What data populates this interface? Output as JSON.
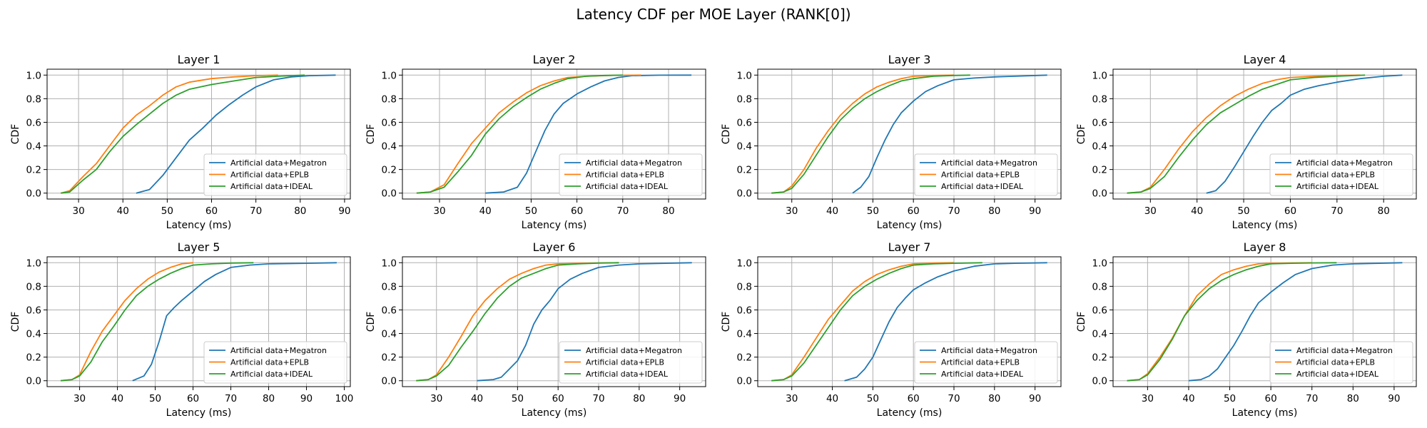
{
  "title": "Latency CDF per MOE Layer (RANK[0])",
  "colors": {
    "megatron": "#1f77b4",
    "eplb": "#ff7f0e",
    "ideal": "#2ca02c",
    "grid": "#b0b0b0"
  },
  "chart_data": [
    {
      "type": "line",
      "title": "Layer 1",
      "xlabel": "Latency (ms)",
      "ylabel": "CDF",
      "xlim": [
        22.9,
        91.3
      ],
      "ylim": [
        -0.05,
        1.05
      ],
      "xticks": [
        30,
        40,
        50,
        60,
        70,
        80,
        90
      ],
      "yticks": [
        0.0,
        0.2,
        0.4,
        0.6,
        0.8,
        1.0
      ],
      "grid": true,
      "legend_position": "lower right",
      "series": [
        {
          "name": "Artificial data+Megatron",
          "x": [
            43,
            46,
            49,
            52,
            55,
            58,
            61,
            64,
            67,
            70,
            74,
            78,
            82,
            88
          ],
          "y": [
            0,
            0.03,
            0.15,
            0.3,
            0.45,
            0.55,
            0.66,
            0.75,
            0.83,
            0.9,
            0.96,
            0.985,
            0.995,
            1.0
          ]
        },
        {
          "name": "Artificial data+EPLB",
          "x": [
            26,
            28,
            31,
            34,
            37,
            40,
            43,
            46,
            49,
            52,
            55,
            60,
            65,
            70,
            75
          ],
          "y": [
            0,
            0.02,
            0.14,
            0.25,
            0.4,
            0.55,
            0.66,
            0.74,
            0.83,
            0.9,
            0.94,
            0.97,
            0.985,
            0.995,
            1.0
          ]
        },
        {
          "name": "Artificial data+IDEAL",
          "x": [
            26,
            28,
            31,
            34,
            37,
            40,
            43,
            46,
            49,
            52,
            55,
            60,
            65,
            70,
            75,
            81
          ],
          "y": [
            0,
            0.01,
            0.11,
            0.2,
            0.35,
            0.48,
            0.58,
            0.67,
            0.76,
            0.83,
            0.88,
            0.92,
            0.95,
            0.98,
            0.99,
            1.0
          ]
        }
      ]
    },
    {
      "type": "line",
      "title": "Layer 2",
      "xlabel": "Latency (ms)",
      "ylabel": "CDF",
      "xlim": [
        21.9,
        88.1
      ],
      "ylim": [
        -0.05,
        1.05
      ],
      "xticks": [
        30,
        40,
        50,
        60,
        70,
        80
      ],
      "yticks": [
        0.0,
        0.2,
        0.4,
        0.6,
        0.8,
        1.0
      ],
      "grid": true,
      "legend_position": "lower right",
      "series": [
        {
          "name": "Artificial data+Megatron",
          "x": [
            40,
            44,
            47,
            49,
            51,
            53,
            55,
            57,
            60,
            63,
            66,
            69,
            72,
            78,
            85
          ],
          "y": [
            0,
            0.01,
            0.05,
            0.17,
            0.35,
            0.53,
            0.67,
            0.76,
            0.84,
            0.9,
            0.95,
            0.98,
            0.995,
            0.999,
            1.0
          ]
        },
        {
          "name": "Artificial data+EPLB",
          "x": [
            25,
            28,
            31,
            34,
            37,
            40,
            43,
            46,
            49,
            52,
            55,
            58,
            62,
            68,
            74
          ],
          "y": [
            0,
            0.01,
            0.07,
            0.25,
            0.42,
            0.55,
            0.68,
            0.77,
            0.85,
            0.91,
            0.95,
            0.98,
            0.99,
            0.998,
            1.0
          ]
        },
        {
          "name": "Artificial data+IDEAL",
          "x": [
            25,
            28,
            31,
            34,
            37,
            40,
            43,
            46,
            49,
            52,
            55,
            58,
            62,
            66,
            70
          ],
          "y": [
            0,
            0.01,
            0.05,
            0.18,
            0.32,
            0.5,
            0.63,
            0.73,
            0.81,
            0.88,
            0.93,
            0.97,
            0.99,
            0.997,
            1.0
          ]
        }
      ]
    },
    {
      "type": "line",
      "title": "Layer 3",
      "xlabel": "Latency (ms)",
      "ylabel": "CDF",
      "xlim": [
        21.6,
        96.4
      ],
      "ylim": [
        -0.05,
        1.05
      ],
      "xticks": [
        30,
        40,
        50,
        60,
        70,
        80,
        90
      ],
      "yticks": [
        0.0,
        0.2,
        0.4,
        0.6,
        0.8,
        1.0
      ],
      "grid": true,
      "legend_position": "lower right",
      "series": [
        {
          "name": "Artificial data+Megatron",
          "x": [
            45,
            47,
            49,
            51,
            53,
            55,
            57,
            60,
            63,
            66,
            70,
            75,
            80,
            85,
            93
          ],
          "y": [
            0,
            0.05,
            0.14,
            0.3,
            0.45,
            0.58,
            0.68,
            0.78,
            0.86,
            0.91,
            0.96,
            0.975,
            0.985,
            0.99,
            1.0
          ]
        },
        {
          "name": "Artificial data+EPLB",
          "x": [
            25,
            28,
            30,
            33,
            36,
            39,
            42,
            45,
            48,
            51,
            54,
            57,
            60,
            65,
            70
          ],
          "y": [
            0,
            0.01,
            0.06,
            0.2,
            0.38,
            0.53,
            0.66,
            0.76,
            0.84,
            0.9,
            0.94,
            0.97,
            0.99,
            0.997,
            1.0
          ]
        },
        {
          "name": "Artificial data+IDEAL",
          "x": [
            25,
            28,
            30,
            33,
            36,
            39,
            42,
            45,
            48,
            51,
            54,
            57,
            60,
            65,
            70,
            74
          ],
          "y": [
            0,
            0.01,
            0.04,
            0.16,
            0.32,
            0.48,
            0.62,
            0.72,
            0.8,
            0.86,
            0.91,
            0.95,
            0.97,
            0.99,
            0.997,
            1.0
          ]
        }
      ]
    },
    {
      "type": "line",
      "title": "Layer 4",
      "xlabel": "Latency (ms)",
      "ylabel": "CDF",
      "xlim": [
        22.0,
        87.0
      ],
      "ylim": [
        -0.05,
        1.05
      ],
      "xticks": [
        30,
        40,
        50,
        60,
        70,
        80
      ],
      "yticks": [
        0.0,
        0.2,
        0.4,
        0.6,
        0.8,
        1.0
      ],
      "grid": true,
      "legend_position": "lower right",
      "series": [
        {
          "name": "Artificial data+Megatron",
          "x": [
            42,
            44,
            46,
            48,
            50,
            52,
            54,
            56,
            58,
            60,
            63,
            66,
            70,
            75,
            80,
            84
          ],
          "y": [
            0,
            0.02,
            0.1,
            0.22,
            0.35,
            0.48,
            0.6,
            0.7,
            0.76,
            0.83,
            0.88,
            0.91,
            0.94,
            0.97,
            0.99,
            1.0
          ]
        },
        {
          "name": "Artificial data+EPLB",
          "x": [
            25,
            28,
            30,
            33,
            36,
            39,
            42,
            45,
            48,
            51,
            54,
            57,
            60,
            65,
            70,
            75
          ],
          "y": [
            0,
            0.01,
            0.05,
            0.2,
            0.37,
            0.52,
            0.64,
            0.74,
            0.82,
            0.88,
            0.93,
            0.96,
            0.98,
            0.99,
            0.997,
            1.0
          ]
        },
        {
          "name": "Artificial data+IDEAL",
          "x": [
            25,
            28,
            30,
            33,
            36,
            39,
            42,
            45,
            48,
            51,
            54,
            57,
            60,
            65,
            70,
            76
          ],
          "y": [
            0,
            0.01,
            0.04,
            0.14,
            0.3,
            0.45,
            0.58,
            0.68,
            0.75,
            0.82,
            0.88,
            0.92,
            0.96,
            0.98,
            0.99,
            1.0
          ]
        }
      ]
    },
    {
      "type": "line",
      "title": "Layer 5",
      "xlabel": "Latency (ms)",
      "ylabel": "CDF",
      "xlim": [
        21.4,
        101.6
      ],
      "ylim": [
        -0.05,
        1.05
      ],
      "xticks": [
        30,
        40,
        50,
        60,
        70,
        80,
        90,
        100
      ],
      "yticks": [
        0.0,
        0.2,
        0.4,
        0.6,
        0.8,
        1.0
      ],
      "grid": true,
      "legend_position": "lower right",
      "series": [
        {
          "name": "Artificial data+Megatron",
          "x": [
            44,
            47,
            49,
            51,
            53,
            55,
            57,
            60,
            63,
            66,
            70,
            75,
            80,
            90,
            98
          ],
          "y": [
            0,
            0.04,
            0.14,
            0.33,
            0.55,
            0.62,
            0.68,
            0.76,
            0.84,
            0.9,
            0.96,
            0.98,
            0.99,
            0.995,
            1.0
          ]
        },
        {
          "name": "Artificial data+EPLB",
          "x": [
            25,
            28,
            30,
            33,
            36,
            39,
            42,
            45,
            48,
            51,
            54,
            57,
            60
          ],
          "y": [
            0,
            0.01,
            0.05,
            0.25,
            0.42,
            0.55,
            0.68,
            0.78,
            0.86,
            0.92,
            0.96,
            0.99,
            1.0
          ]
        },
        {
          "name": "Artificial data+IDEAL",
          "x": [
            25,
            28,
            30,
            33,
            36,
            39,
            42,
            45,
            48,
            51,
            54,
            57,
            60,
            65,
            70,
            76
          ],
          "y": [
            0,
            0.01,
            0.04,
            0.16,
            0.33,
            0.46,
            0.6,
            0.72,
            0.8,
            0.86,
            0.91,
            0.95,
            0.98,
            0.99,
            0.997,
            1.0
          ]
        }
      ]
    },
    {
      "type": "line",
      "title": "Layer 6",
      "xlabel": "Latency (ms)",
      "ylabel": "CDF",
      "xlim": [
        21.6,
        96.4
      ],
      "ylim": [
        -0.05,
        1.05
      ],
      "xticks": [
        30,
        40,
        50,
        60,
        70,
        80,
        90
      ],
      "yticks": [
        0.0,
        0.2,
        0.4,
        0.6,
        0.8,
        1.0
      ],
      "grid": true,
      "legend_position": "lower right",
      "series": [
        {
          "name": "Artificial data+Megatron",
          "x": [
            40,
            44,
            46,
            48,
            50,
            52,
            54,
            56,
            58,
            60,
            63,
            66,
            70,
            75,
            80,
            93
          ],
          "y": [
            0,
            0.01,
            0.03,
            0.1,
            0.17,
            0.3,
            0.48,
            0.6,
            0.68,
            0.78,
            0.86,
            0.91,
            0.96,
            0.98,
            0.99,
            1.0
          ]
        },
        {
          "name": "Artificial data+EPLB",
          "x": [
            25,
            28,
            30,
            33,
            36,
            39,
            42,
            45,
            48,
            51,
            54,
            57,
            60,
            65,
            70,
            75
          ],
          "y": [
            0,
            0.01,
            0.05,
            0.2,
            0.37,
            0.55,
            0.68,
            0.78,
            0.86,
            0.91,
            0.95,
            0.98,
            0.99,
            0.995,
            0.998,
            1.0
          ]
        },
        {
          "name": "Artificial data+IDEAL",
          "x": [
            25,
            28,
            30,
            33,
            36,
            39,
            42,
            45,
            48,
            51,
            54,
            57,
            60,
            65,
            70,
            75
          ],
          "y": [
            0,
            0.01,
            0.04,
            0.13,
            0.28,
            0.42,
            0.57,
            0.7,
            0.8,
            0.87,
            0.91,
            0.95,
            0.98,
            0.99,
            0.997,
            1.0
          ]
        }
      ]
    },
    {
      "type": "line",
      "title": "Layer 7",
      "xlabel": "Latency (ms)",
      "ylabel": "CDF",
      "xlim": [
        21.6,
        96.4
      ],
      "ylim": [
        -0.05,
        1.05
      ],
      "xticks": [
        30,
        40,
        50,
        60,
        70,
        80,
        90
      ],
      "yticks": [
        0.0,
        0.2,
        0.4,
        0.6,
        0.8,
        1.0
      ],
      "grid": true,
      "legend_position": "lower right",
      "series": [
        {
          "name": "Artificial data+Megatron",
          "x": [
            43,
            46,
            48,
            50,
            52,
            54,
            56,
            58,
            60,
            63,
            66,
            70,
            75,
            80,
            85,
            93
          ],
          "y": [
            0,
            0.03,
            0.1,
            0.2,
            0.35,
            0.5,
            0.62,
            0.7,
            0.77,
            0.83,
            0.88,
            0.93,
            0.97,
            0.99,
            0.995,
            1.0
          ]
        },
        {
          "name": "Artificial data+EPLB",
          "x": [
            25,
            28,
            30,
            33,
            36,
            39,
            42,
            45,
            48,
            51,
            54,
            57,
            60,
            65,
            70
          ],
          "y": [
            0,
            0.01,
            0.05,
            0.2,
            0.36,
            0.52,
            0.64,
            0.76,
            0.84,
            0.9,
            0.94,
            0.97,
            0.99,
            0.997,
            1.0
          ]
        },
        {
          "name": "Artificial data+IDEAL",
          "x": [
            25,
            28,
            30,
            33,
            36,
            39,
            42,
            45,
            48,
            51,
            54,
            57,
            60,
            65,
            70,
            77
          ],
          "y": [
            0,
            0.01,
            0.04,
            0.15,
            0.3,
            0.45,
            0.6,
            0.72,
            0.8,
            0.86,
            0.91,
            0.95,
            0.98,
            0.99,
            0.995,
            1.0
          ]
        }
      ]
    },
    {
      "type": "line",
      "title": "Layer 8",
      "xlabel": "Latency (ms)",
      "ylabel": "CDF",
      "xlim": [
        21.6,
        95.4
      ],
      "ylim": [
        -0.05,
        1.05
      ],
      "xticks": [
        30,
        40,
        50,
        60,
        70,
        80,
        90
      ],
      "yticks": [
        0.0,
        0.2,
        0.4,
        0.6,
        0.8,
        1.0
      ],
      "grid": true,
      "legend_position": "lower right",
      "series": [
        {
          "name": "Artificial data+Megatron",
          "x": [
            40,
            43,
            45,
            47,
            49,
            51,
            53,
            55,
            57,
            60,
            63,
            66,
            70,
            75,
            80,
            92
          ],
          "y": [
            0,
            0.01,
            0.04,
            0.1,
            0.2,
            0.3,
            0.42,
            0.55,
            0.66,
            0.75,
            0.83,
            0.9,
            0.95,
            0.98,
            0.99,
            1.0
          ]
        },
        {
          "name": "Artificial data+EPLB",
          "x": [
            25,
            28,
            30,
            33,
            36,
            39,
            42,
            45,
            48,
            51,
            54,
            57,
            60,
            65,
            70
          ],
          "y": [
            0,
            0.01,
            0.06,
            0.2,
            0.36,
            0.55,
            0.72,
            0.82,
            0.9,
            0.94,
            0.97,
            0.99,
            0.995,
            0.998,
            1.0
          ]
        },
        {
          "name": "Artificial data+IDEAL",
          "x": [
            25,
            28,
            30,
            33,
            36,
            39,
            42,
            45,
            48,
            51,
            54,
            57,
            60,
            65,
            70,
            76
          ],
          "y": [
            0,
            0.01,
            0.05,
            0.18,
            0.35,
            0.55,
            0.68,
            0.78,
            0.85,
            0.9,
            0.94,
            0.97,
            0.99,
            0.995,
            0.998,
            1.0
          ]
        }
      ]
    }
  ]
}
